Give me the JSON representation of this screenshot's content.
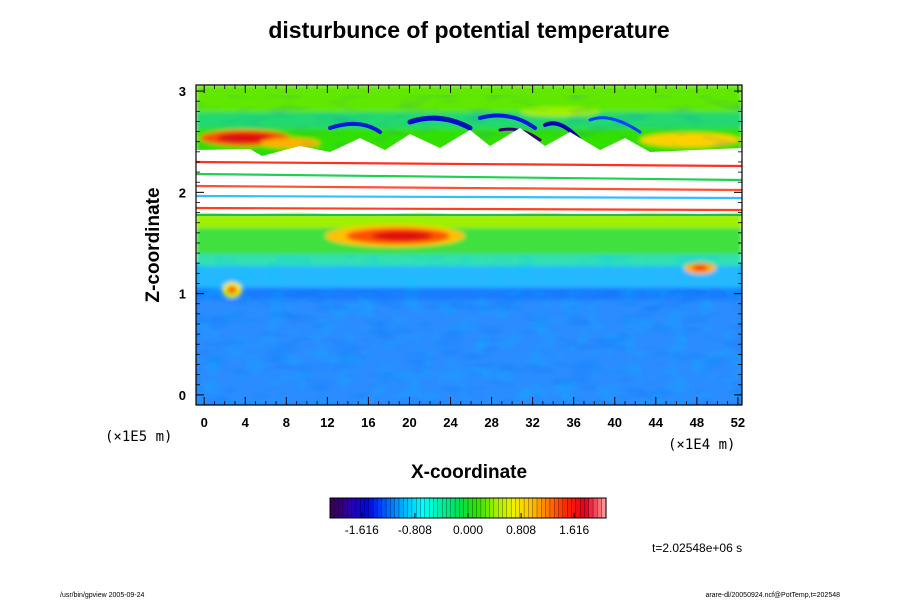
{
  "chart_data": {
    "type": "heatmap",
    "title": "disturbunce of potential temperature",
    "xlabel": "X-coordinate",
    "ylabel": "Z-coordinate",
    "x_scale_label": "(×1E4 m)",
    "y_scale_label": "(×1E5 m)",
    "xlim": [
      -0.8,
      52.4
    ],
    "ylim": [
      -0.1,
      3.06
    ],
    "x_ticks": [
      "0",
      "4",
      "8",
      "12",
      "16",
      "20",
      "24",
      "28",
      "32",
      "36",
      "40",
      "44",
      "48",
      "52"
    ],
    "y_ticks": [
      "0",
      "1",
      "2",
      "3"
    ],
    "colorbar": {
      "range": [
        -2.1,
        2.1
      ],
      "ticks": [
        "-1.616",
        "-0.808",
        "0.000",
        "0.808",
        "1.616"
      ],
      "colors": [
        "#3a005a",
        "#2a00a8",
        "#0008e0",
        "#0060ff",
        "#00b8ff",
        "#00ffff",
        "#00f0a0",
        "#00e050",
        "#30e000",
        "#a0f000",
        "#f0f000",
        "#ffc000",
        "#ff7000",
        "#ff2000",
        "#e00020",
        "#ff9090"
      ]
    },
    "bands": [
      {
        "z_range": [
          2.25,
          3.06
        ],
        "level": 0.15,
        "label": "upper layer, green with blue/red streaks"
      },
      {
        "z_range": [
          1.75,
          2.25
        ],
        "level": null,
        "label": "undefined (white)"
      },
      {
        "z_range": [
          1.35,
          1.75
        ],
        "level": 0.6,
        "label": "green/yellow with red maximum near x=16-22"
      },
      {
        "z_range": [
          -0.1,
          1.35
        ],
        "level": -0.9,
        "label": "lower layer, blue/cyan eddies"
      }
    ],
    "time_label": "t=2.02548e+06 s"
  },
  "footer": {
    "left": "/usr/bin/gpview 2005-09-24",
    "right": "arare-dl/20050924.ncf@PotTemp,t=202548"
  }
}
